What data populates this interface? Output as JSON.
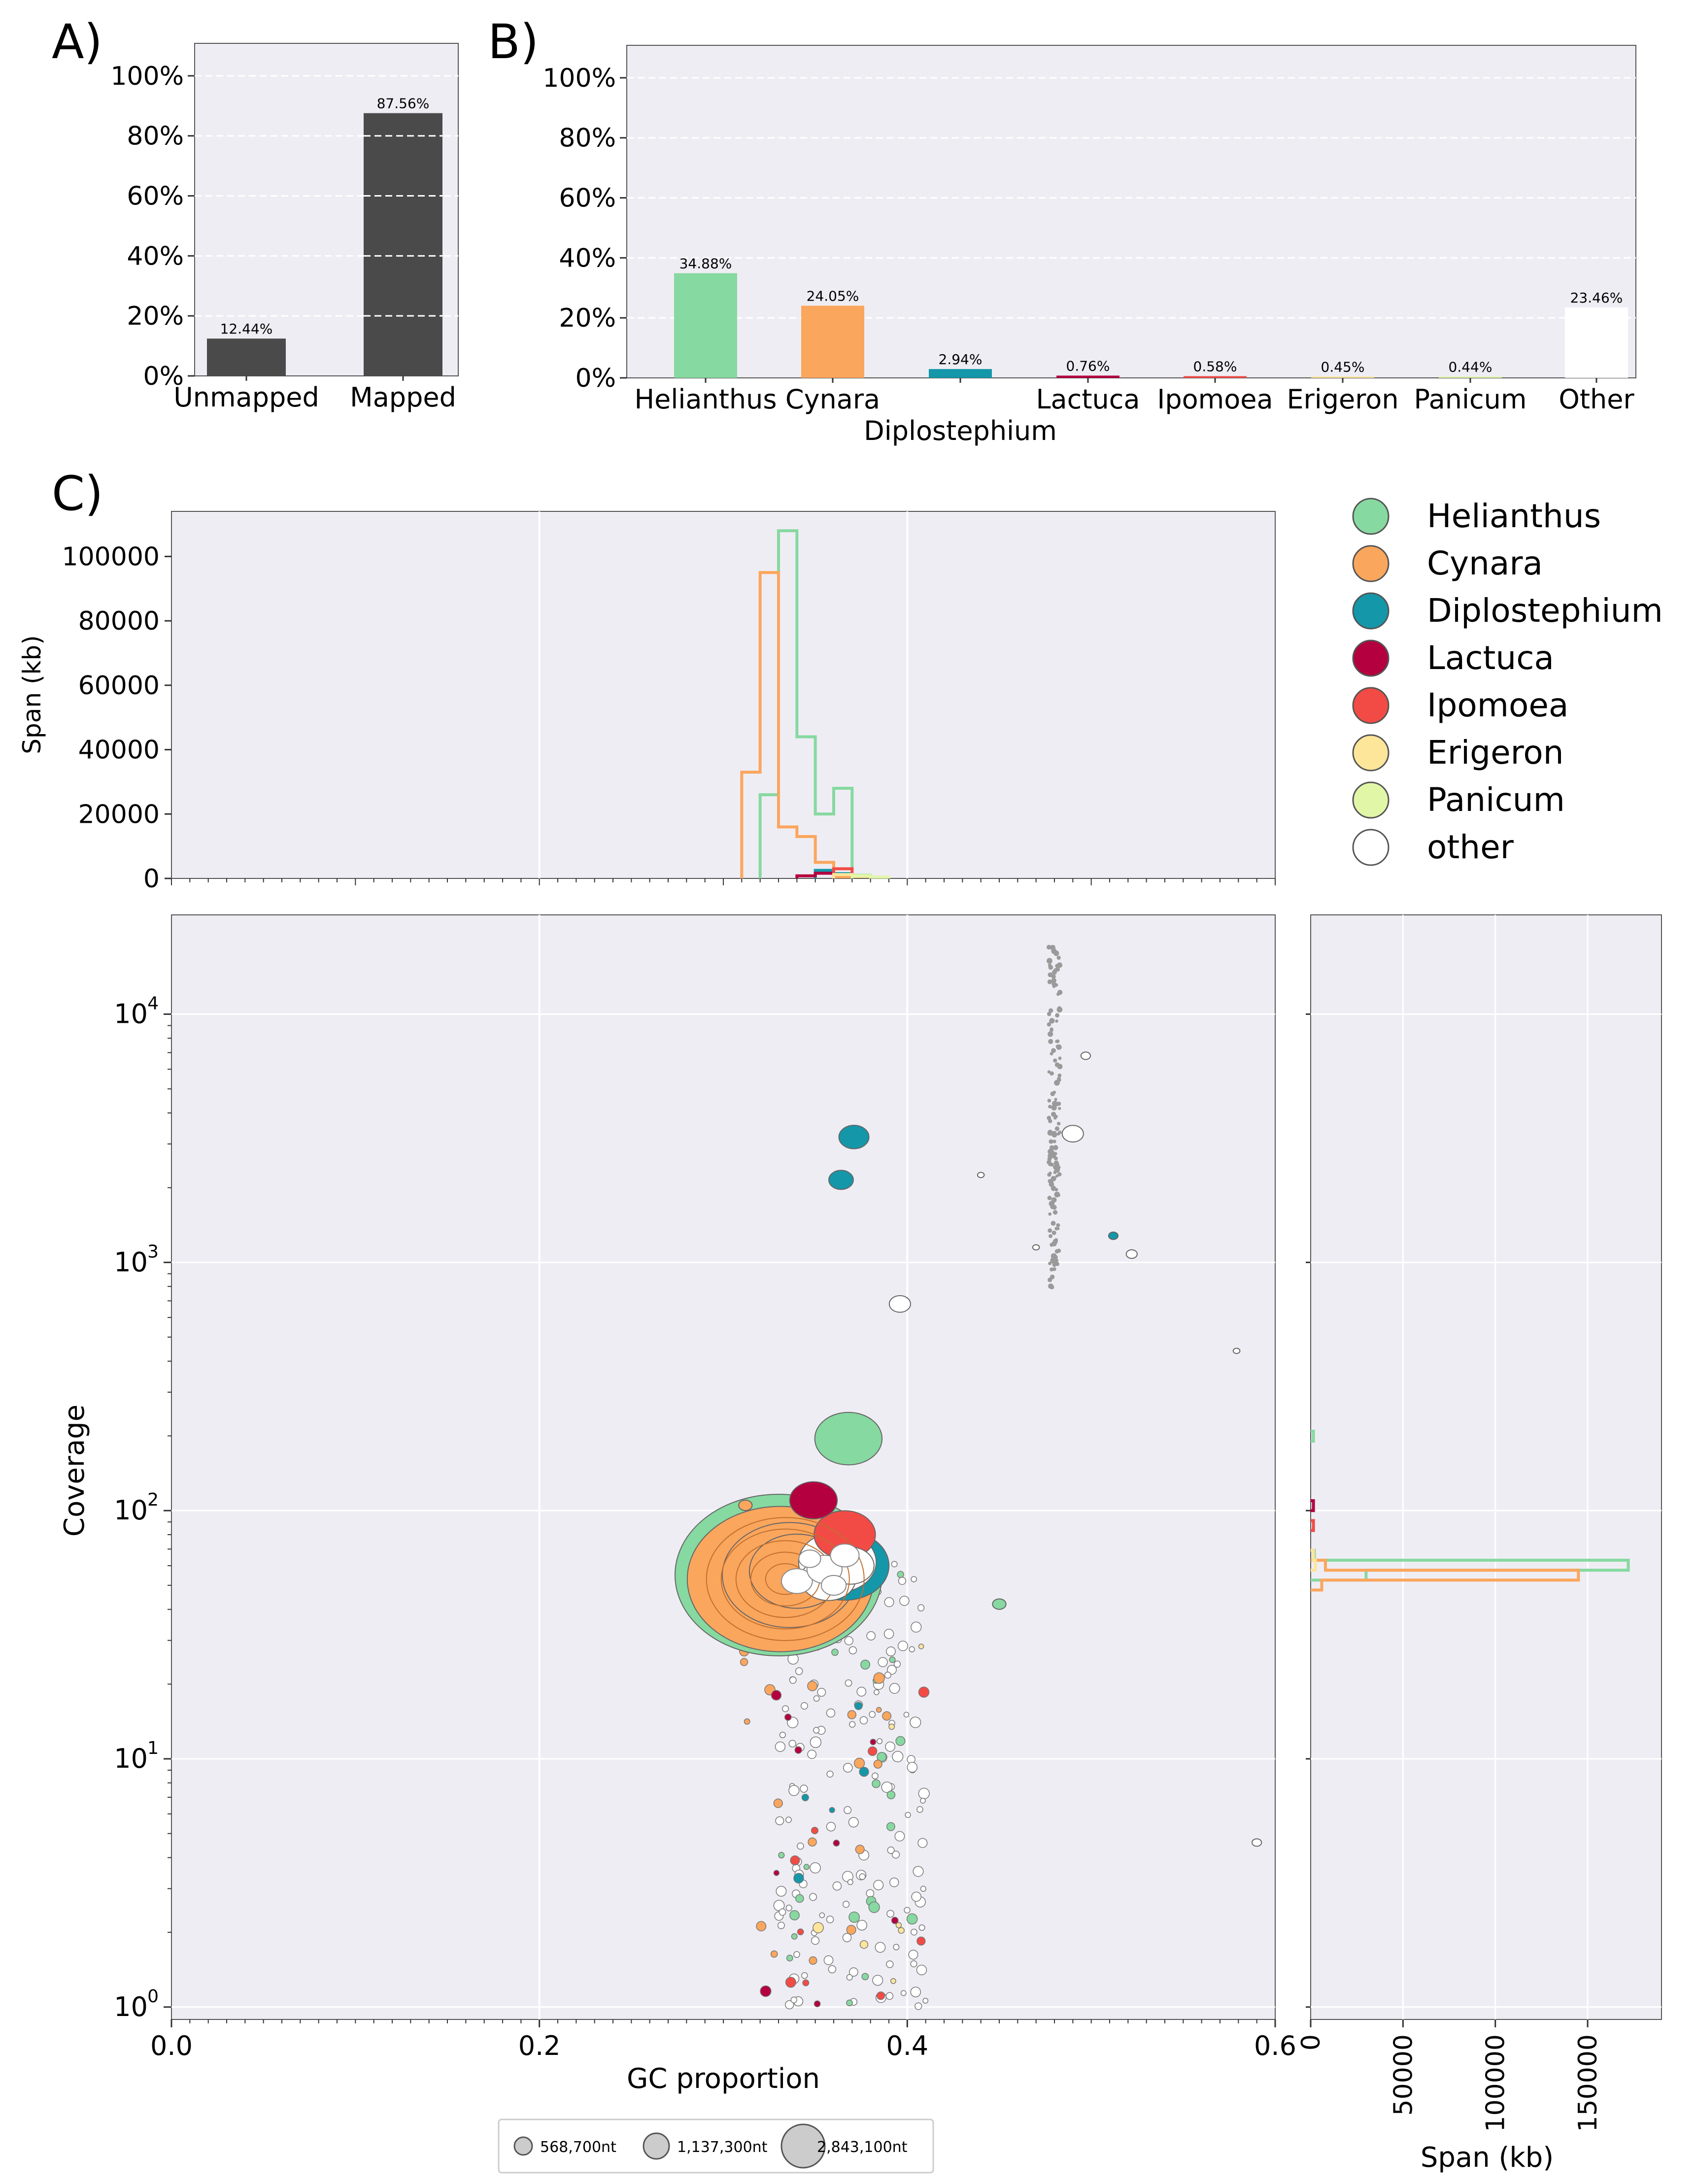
{
  "colors": {
    "panel_bg": "#efedf4",
    "bar_dark": "#4a4a4a",
    "Helianthus": "#86d9a0",
    "Cynara": "#fba65d",
    "Diplostephium": "#1497a9",
    "Lactuca": "#b4003f",
    "Ipomoea": "#f24b45",
    "Erigeron": "#fde59a",
    "Panicum": "#e2f6a7",
    "other": "#ffffff"
  },
  "chart_data": [
    {
      "id": "A",
      "panel_label": "A)",
      "type": "bar",
      "categories": [
        "Unmapped",
        "Mapped"
      ],
      "values": [
        12.44,
        87.56
      ],
      "value_labels": [
        "12.44%",
        "87.56%"
      ],
      "ylim": [
        0,
        110
      ],
      "yticks": [
        "0%",
        "20%",
        "40%",
        "60%",
        "80%",
        "100%"
      ]
    },
    {
      "id": "B",
      "panel_label": "B)",
      "type": "bar",
      "categories": [
        "Helianthus",
        "Cynara",
        "Diplostephium",
        "Lactuca",
        "Ipomoea",
        "Erigeron",
        "Panicum",
        "Other"
      ],
      "values": [
        34.88,
        24.05,
        2.94,
        0.76,
        0.58,
        0.45,
        0.44,
        23.46
      ],
      "value_labels": [
        "34.88%",
        "24.05%",
        "2.94%",
        "0.76%",
        "0.58%",
        "0.45%",
        "0.44%",
        "23.46%"
      ],
      "ylim": [
        0,
        110
      ],
      "yticks": [
        "0%",
        "20%",
        "40%",
        "60%",
        "80%",
        "100%"
      ]
    },
    {
      "id": "C-top",
      "panel_label": "C)",
      "type": "histogram",
      "ylabel": "Span (kb)",
      "xlim": [
        0.0,
        0.6
      ],
      "ylim": [
        0,
        114000
      ],
      "yticks": [
        "0",
        "20000",
        "40000",
        "60000",
        "80000",
        "100000"
      ],
      "bin_width": 0.01,
      "series": [
        {
          "name": "Helianthus",
          "bins": [
            [
              0.32,
              26000
            ],
            [
              0.33,
              108000
            ],
            [
              0.34,
              44000
            ],
            [
              0.35,
              20000
            ],
            [
              0.36,
              28000
            ],
            [
              0.37,
              1000
            ]
          ]
        },
        {
          "name": "Cynara",
          "bins": [
            [
              0.31,
              33000
            ],
            [
              0.32,
              95000
            ],
            [
              0.33,
              16000
            ],
            [
              0.34,
              13000
            ],
            [
              0.35,
              5000
            ],
            [
              0.36,
              500
            ]
          ]
        },
        {
          "name": "Diplostephium",
          "bins": [
            [
              0.35,
              2500
            ],
            [
              0.36,
              1500
            ]
          ]
        },
        {
          "name": "Lactuca",
          "bins": [
            [
              0.34,
              800
            ],
            [
              0.35,
              1600
            ]
          ]
        },
        {
          "name": "Ipomoea",
          "bins": [
            [
              0.36,
              3000
            ]
          ]
        },
        {
          "name": "Erigeron",
          "bins": [
            [
              0.36,
              1200
            ],
            [
              0.37,
              600
            ]
          ]
        },
        {
          "name": "Panicum",
          "bins": [
            [
              0.37,
              900
            ],
            [
              0.38,
              400
            ]
          ]
        }
      ]
    },
    {
      "id": "C-main",
      "type": "scatter",
      "xlabel": "GC proportion",
      "ylabel": "Coverage",
      "xlim": [
        0.0,
        0.6
      ],
      "ylim_log10": [
        -0.05,
        4.4
      ],
      "xticks": [
        "0.0",
        "0.2",
        "0.4",
        "0.6"
      ],
      "yticks_exp": [
        "0",
        "1",
        "2",
        "3",
        "4"
      ],
      "ytick_base": "10",
      "clusters": [
        {
          "name": "other",
          "x": 0.48,
          "y_log_range": [
            2.9,
            4.3
          ],
          "n": 150,
          "size": 3,
          "alt": "grey"
        },
        {
          "name": "other",
          "x": 0.37,
          "y_log_range": [
            0,
            1.8
          ],
          "n": 160,
          "size": 8
        },
        {
          "name": "Helianthus",
          "x": 0.37,
          "y_log_range": [
            0,
            1.8
          ],
          "n": 30,
          "size": 8
        },
        {
          "name": "Cynara",
          "x": 0.35,
          "y_log_range": [
            0,
            1.8
          ],
          "n": 20,
          "size": 8
        },
        {
          "name": "Lactuca",
          "x": 0.36,
          "y_log_range": [
            0,
            1.8
          ],
          "n": 12,
          "size": 8
        },
        {
          "name": "Ipomoea",
          "x": 0.37,
          "y_log_range": [
            0,
            1.7
          ],
          "n": 10,
          "size": 8
        },
        {
          "name": "Erigeron",
          "x": 0.37,
          "y_log_range": [
            0,
            1.7
          ],
          "n": 8,
          "size": 8
        },
        {
          "name": "Diplostephium",
          "x": 0.36,
          "y_log_range": [
            0.5,
            1.5
          ],
          "n": 5,
          "size": 8
        }
      ],
      "points": [
        {
          "name": "Helianthus",
          "x": 0.33,
          "y": 55,
          "size": 2843100
        },
        {
          "name": "Cynara",
          "x": 0.331,
          "y": 53,
          "size": 2300000
        },
        {
          "name": "Cynara",
          "x": 0.336,
          "y": 55,
          "size": 1200000
        },
        {
          "name": "Cynara",
          "x": 0.34,
          "y": 57,
          "size": 600000
        },
        {
          "name": "Helianthus",
          "x": 0.368,
          "y": 195,
          "size": 300000
        },
        {
          "name": "Diplostephium",
          "x": 0.371,
          "y": 3200,
          "size": 60000
        },
        {
          "name": "Diplostephium",
          "x": 0.364,
          "y": 2150,
          "size": 40000
        },
        {
          "name": "Diplostephium",
          "x": 0.366,
          "y": 60,
          "size": 520000
        },
        {
          "name": "Ipomoea",
          "x": 0.366,
          "y": 80,
          "size": 250000
        },
        {
          "name": "Lactuca",
          "x": 0.349,
          "y": 110,
          "size": 150000
        },
        {
          "name": "other",
          "x": 0.362,
          "y": 62,
          "size": 400000
        },
        {
          "name": "other",
          "x": 0.357,
          "y": 53,
          "size": 200000
        },
        {
          "name": "other",
          "x": 0.369,
          "y": 60,
          "size": 150000
        },
        {
          "name": "other",
          "x": 0.396,
          "y": 680,
          "size": 30000
        },
        {
          "name": "other",
          "x": 0.49,
          "y": 3300,
          "size": 30000
        },
        {
          "name": "Helianthus",
          "x": 0.45,
          "y": 42,
          "size": 12000
        },
        {
          "name": "Cynara",
          "x": 0.312,
          "y": 105,
          "size": 12000
        },
        {
          "name": "Diplostephium",
          "x": 0.512,
          "y": 1280,
          "size": 6000
        },
        {
          "name": "other",
          "x": 0.59,
          "y": 4.6,
          "size": 6000
        },
        {
          "name": "other",
          "x": 0.579,
          "y": 440,
          "size": 3000
        },
        {
          "name": "other",
          "x": 0.522,
          "y": 1080,
          "size": 8000
        },
        {
          "name": "other",
          "x": 0.47,
          "y": 1150,
          "size": 3000
        },
        {
          "name": "other",
          "x": 0.44,
          "y": 2250,
          "size": 3000
        },
        {
          "name": "other",
          "x": 0.497,
          "y": 6800,
          "size": 6000
        }
      ],
      "size_legend": [
        {
          "label": "568,700nt",
          "size": 568700
        },
        {
          "label": "1,137,300nt",
          "size": 1137300
        },
        {
          "label": "2,843,100nt",
          "size": 2843100
        }
      ]
    },
    {
      "id": "C-right",
      "type": "histogram",
      "orientation": "horizontal",
      "xlabel": "Span (kb)",
      "xlim": [
        0,
        190000
      ],
      "xticks": [
        "0",
        "50000",
        "100000",
        "150000"
      ],
      "series": [
        {
          "name": "Helianthus",
          "bins": [
            [
              1.72,
              30000
            ],
            [
              1.76,
              172000
            ],
            [
              1.8,
              2000
            ]
          ]
        },
        {
          "name": "Cynara",
          "bins": [
            [
              1.68,
              6000
            ],
            [
              1.72,
              145000
            ],
            [
              1.76,
              8000
            ]
          ]
        },
        {
          "name": "Lactuca",
          "bins": [
            [
              2.0,
              1500
            ]
          ]
        },
        {
          "name": "Ipomoea",
          "bins": [
            [
              1.92,
              1500
            ]
          ]
        },
        {
          "name": "Erigeron",
          "bins": [
            [
              1.76,
              2500
            ],
            [
              1.8,
              1500
            ]
          ]
        },
        {
          "name": "Helianthus",
          "bins": [
            [
              2.28,
              1500
            ]
          ]
        }
      ]
    }
  ],
  "legend": {
    "items": [
      "Helianthus",
      "Cynara",
      "Diplostephium",
      "Lactuca",
      "Ipomoea",
      "Erigeron",
      "Panicum",
      "other"
    ]
  }
}
